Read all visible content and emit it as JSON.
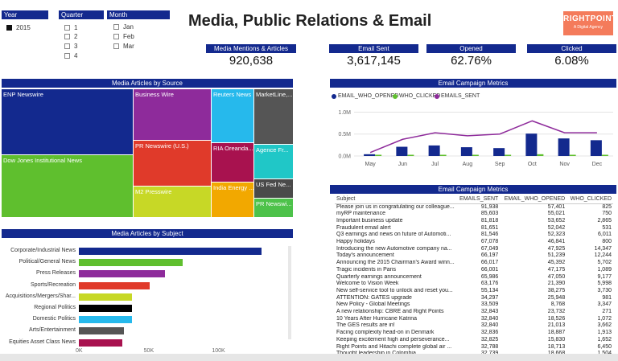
{
  "title": "Media, Public Relations & Email",
  "logo": {
    "name": "RIGHTPOINT",
    "tagline": "A Digital Agency",
    "color": "#f47b5b"
  },
  "slicers": {
    "year": {
      "header": "Year",
      "items": [
        {
          "label": "2015",
          "checked": true
        }
      ]
    },
    "quarter": {
      "header": "Quarter",
      "items": [
        {
          "label": "1"
        },
        {
          "label": "2"
        },
        {
          "label": "3"
        },
        {
          "label": "4"
        }
      ]
    },
    "month": {
      "header": "Month",
      "items": [
        {
          "label": "Jan"
        },
        {
          "label": "Feb"
        },
        {
          "label": "Mar"
        }
      ]
    }
  },
  "kpis": {
    "media": {
      "label": "Media Mentions & Articles",
      "value": "920,638"
    },
    "sent": {
      "label": "Email Sent",
      "value": "3,617,145"
    },
    "opened": {
      "label": "Opened",
      "value": "62.76%"
    },
    "clicked": {
      "label": "Clicked",
      "value": "6.08%"
    }
  },
  "treemap": {
    "header": "Media Articles by Source",
    "tiles": [
      {
        "label": "ENP Newswire",
        "color": "#13298e"
      },
      {
        "label": "Dow Jones Institutional News",
        "color": "#5fbf2e"
      },
      {
        "label": "Business Wire",
        "color": "#8e2b9b"
      },
      {
        "label": "PR Newswire (U.S.)",
        "color": "#e03a2a"
      },
      {
        "label": "M2 Presswire",
        "color": "#c7d826"
      },
      {
        "label": "Reuters News",
        "color": "#26b9ec"
      },
      {
        "label": "RIA Oreanda...",
        "color": "#a8124f"
      },
      {
        "label": "India Energy ...",
        "color": "#f2a800"
      },
      {
        "label": "MarketLine,...",
        "color": "#555555"
      },
      {
        "label": "Agence Fr...",
        "color": "#20c7c7"
      },
      {
        "label": "US Fed Ne...",
        "color": "#4a4a4a"
      },
      {
        "label": "PR Newswi...",
        "color": "#4dc24a"
      }
    ]
  },
  "subject_chart": {
    "header": "Media Articles by Subject",
    "xticks": [
      "0K",
      "50K",
      "100K"
    ]
  },
  "chart_data": [
    {
      "type": "bar",
      "orientation": "horizontal",
      "title": "Media Articles by Subject",
      "categories": [
        "Corporate/Industrial News",
        "Political/General News",
        "Press Releases",
        "Sports/Recreation",
        "Acquisitions/Mergers/Shar...",
        "Regional Politics",
        "Domestic Politics",
        "Arts/Entertainment",
        "Equities Asset Class News"
      ],
      "values": [
        134000,
        76000,
        63000,
        52000,
        39000,
        39000,
        39000,
        33000,
        32000
      ],
      "colors": [
        "#13298e",
        "#5fbf2e",
        "#8e2b9b",
        "#e03a2a",
        "#c7d826",
        "#000000",
        "#26b9ec",
        "#555555",
        "#a8124f"
      ],
      "xlim": [
        0,
        150000
      ]
    },
    {
      "type": "bar",
      "title": "Email Campaign Metrics",
      "categories": [
        "May",
        "Jun",
        "Jul",
        "Aug",
        "Sep",
        "Oct",
        "Nov",
        "Dec"
      ],
      "series": [
        {
          "name": "EMAIL_WHO_OPENED",
          "color": "#13298e",
          "values": [
            0.04,
            0.21,
            0.24,
            0.2,
            0.18,
            0.51,
            0.4,
            0.36
          ]
        },
        {
          "name": "WHO_CLICKED",
          "color": "#5fbf2e",
          "values": [
            0.0,
            0.01,
            0.01,
            0.01,
            0.01,
            0.04,
            0.02,
            0.02
          ]
        },
        {
          "name": "EMAILS_SENT",
          "color": "#8e2b9b",
          "kind": "line",
          "values": [
            0.08,
            0.38,
            0.53,
            0.46,
            0.5,
            0.8,
            0.53,
            0.53
          ]
        }
      ],
      "yticks": [
        "0.0M",
        "0.5M",
        "1.0M"
      ],
      "ylim": [
        0,
        1.1
      ]
    }
  ],
  "email_chart": {
    "header": "Email Campaign Metrics"
  },
  "email_table": {
    "header": "Email Campaign Metrics",
    "columns": [
      "Subject",
      "EMAILS_SENT",
      "EMAIL_WHO_OPENED",
      "WHO_CLICKED"
    ],
    "rows": [
      [
        "Please join us in congratulating our colleague...",
        "91,938",
        "57,401",
        "825"
      ],
      [
        "myRP maintenance",
        "85,603",
        "55,021",
        "750"
      ],
      [
        "Important business update",
        "81,818",
        "53,652",
        "2,865"
      ],
      [
        "Fraudulent email alert",
        "81,651",
        "52,042",
        "531"
      ],
      [
        "Q3 earnings and news on future of Automoti...",
        "81,546",
        "52,323",
        "6,011"
      ],
      [
        "Happy holidays",
        "67,078",
        "46,841",
        "800"
      ],
      [
        "Introducing the new Automotive company na...",
        "67,049",
        "47,925",
        "14,347"
      ],
      [
        "Today's announcement",
        "66,197",
        "51,239",
        "12,244"
      ],
      [
        "Announcing the 2015 Chairman's Award winn...",
        "66,017",
        "45,392",
        "5,702"
      ],
      [
        "Tragic incidents in Paris",
        "66,001",
        "47,175",
        "1,089"
      ],
      [
        "Quarterly earnings announcement",
        "65,986",
        "47,050",
        "9,177"
      ],
      [
        "Welcome to Vision Week",
        "63,176",
        "21,390",
        "5,998"
      ],
      [
        "New self-service tool to unlock and reset you...",
        "55,134",
        "38,275",
        "3,730"
      ],
      [
        "ATTENTION: GATES upgrade",
        "34,297",
        "25,948",
        "981"
      ],
      [
        "New Policy - Global Meetings",
        "33,509",
        "8,768",
        "3,347"
      ],
      [
        "A new relationship: CBRE and Right Points",
        "32,843",
        "23,732",
        "271"
      ],
      [
        "10 Years After Hurricane Katrina",
        "32,840",
        "18,526",
        "1,072"
      ],
      [
        "The GES results are in!",
        "32,840",
        "21,013",
        "3,662"
      ],
      [
        "Facing complexity head-on in Denmark",
        "32,836",
        "18,887",
        "1,913"
      ],
      [
        "Keeping excitement high and perseverance...",
        "32,825",
        "15,830",
        "1,652"
      ],
      [
        "Right Points and Hitachi complete global air ...",
        "32,788",
        "18,713",
        "6,450"
      ],
      [
        "Thought leadership in Colombia",
        "32,739",
        "18,668",
        "1,504"
      ]
    ]
  }
}
